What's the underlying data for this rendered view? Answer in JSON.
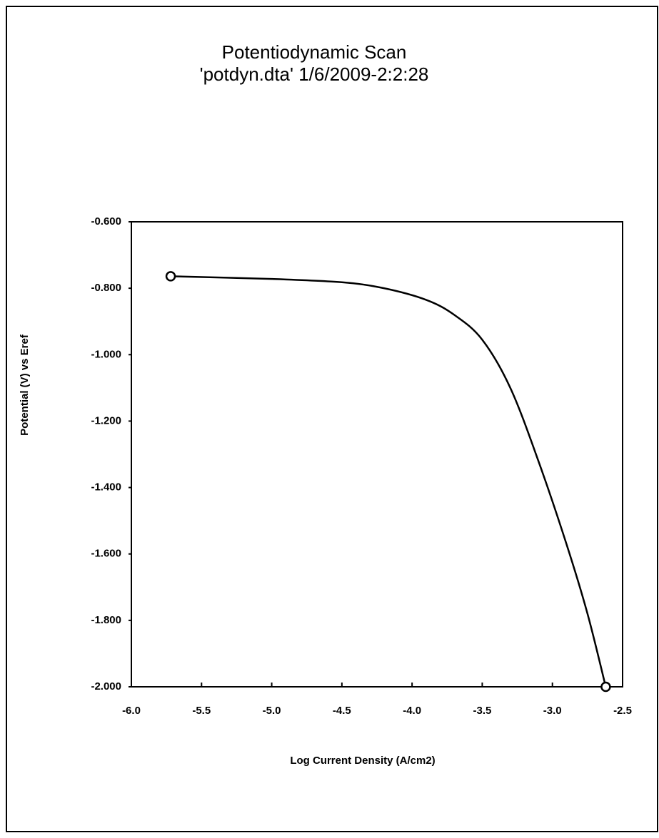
{
  "chart_data": {
    "type": "line",
    "title": "Potentiodynamic Scan",
    "subtitle": "'potdyn.dta' 1/6/2009-2:2:28",
    "x_label": "Log Current Density (A/cm2)",
    "y_label": "Potential (V) vs Eref",
    "x": [
      -5.72,
      -5.0,
      -4.5,
      -4.2,
      -3.9,
      -3.7,
      -3.5,
      -3.3,
      -3.1,
      -2.9,
      -2.75,
      -2.62
    ],
    "series": [
      {
        "color": "#000000",
        "values": [
          -0.764,
          -0.772,
          -0.782,
          -0.8,
          -0.835,
          -0.88,
          -0.955,
          -1.1,
          -1.32,
          -1.57,
          -1.78,
          -2.0
        ]
      }
    ],
    "xlim": [
      -6.0,
      -2.5
    ],
    "xticks": [
      {
        "value": -6.0,
        "label": "-6.0"
      },
      {
        "value": -5.5,
        "label": "-5.5"
      },
      {
        "value": -5.0,
        "label": "-5.0"
      },
      {
        "value": -4.5,
        "label": "-4.5"
      },
      {
        "value": -4.0,
        "label": "-4.0"
      },
      {
        "value": -3.5,
        "label": "-3.5"
      },
      {
        "value": -3.0,
        "label": "-3.0"
      },
      {
        "value": -2.5,
        "label": "-2.5"
      }
    ],
    "ylim": [
      -2.0,
      -0.6
    ],
    "yticks": [
      {
        "value": -2.0,
        "label": "-2.000"
      },
      {
        "value": -1.8,
        "label": "-1.800"
      },
      {
        "value": -1.6,
        "label": "-1.600"
      },
      {
        "value": -1.4,
        "label": "-1.400"
      },
      {
        "value": -1.2,
        "label": "-1.200"
      },
      {
        "value": -1.0,
        "label": "-1.000"
      },
      {
        "value": -0.8,
        "label": "-0.800"
      },
      {
        "value": -0.6,
        "label": "-0.600"
      }
    ],
    "grid": false
  }
}
